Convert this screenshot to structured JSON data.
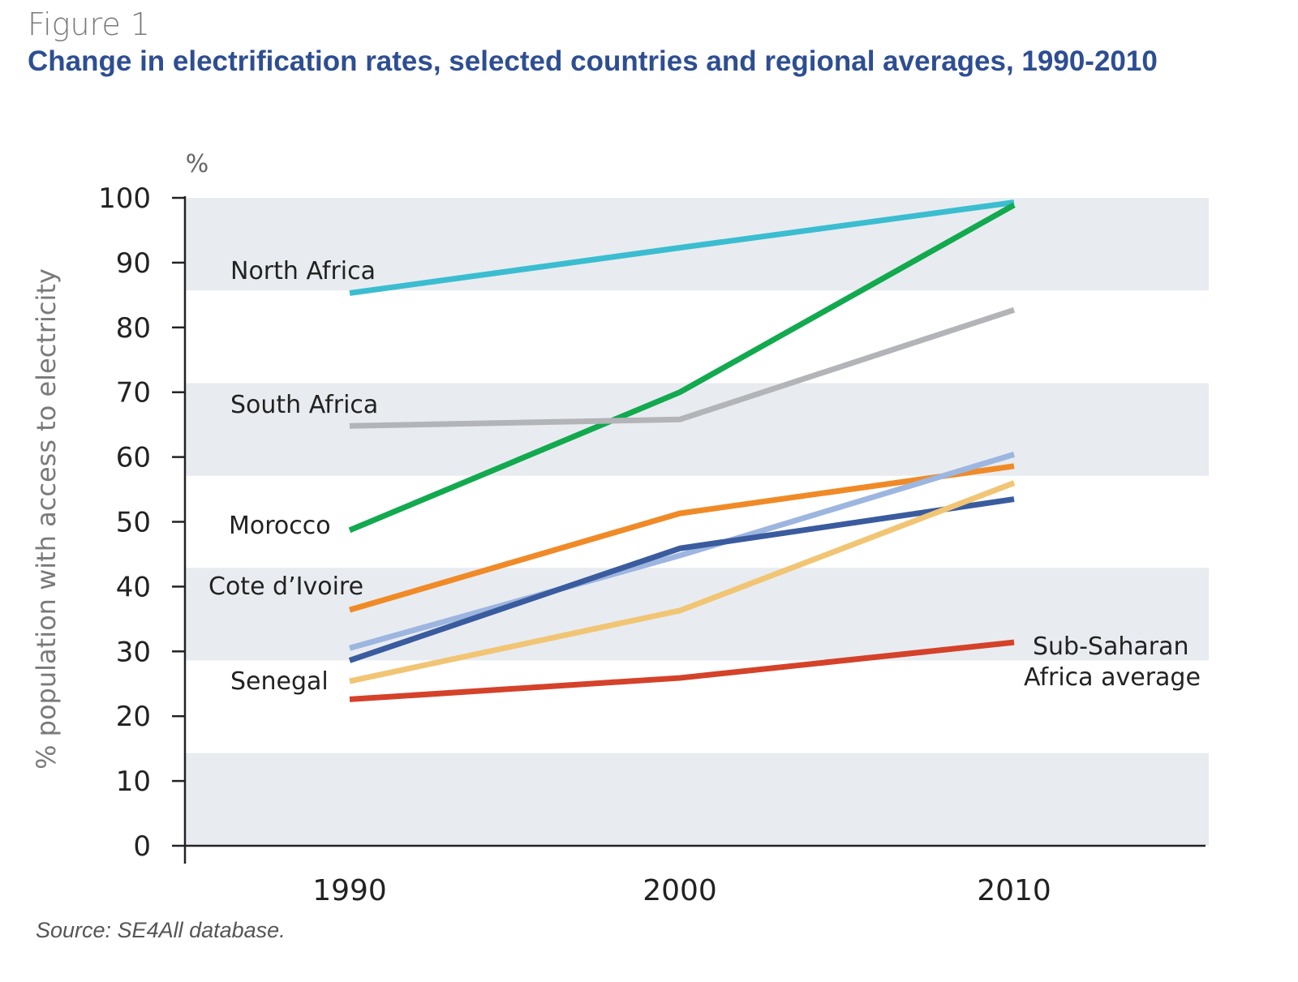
{
  "figure": {
    "label": "Figure 1",
    "title": "Change in electrification rates, selected countries and regional averages, 1990-2010",
    "source": "Source: SE4All database."
  },
  "chart_data": {
    "type": "line",
    "title": "Change in electrification rates, selected countries and regional averages, 1990-2010",
    "xlabel": "",
    "ylabel": "% population with access to electricity",
    "y_unit": "%",
    "x": [
      "1990",
      "2000",
      "2010"
    ],
    "ylim": [
      0,
      100
    ],
    "yticks": [
      0,
      10,
      20,
      30,
      40,
      50,
      60,
      70,
      80,
      90,
      100
    ],
    "series": [
      {
        "name": "North Africa",
        "values": [
          85.3,
          92.3,
          99.3
        ],
        "color": "#3bbdd0"
      },
      {
        "name": "Morocco",
        "values": [
          48.7,
          70.0,
          98.9
        ],
        "color": "#12a94f"
      },
      {
        "name": "South Africa",
        "values": [
          64.8,
          65.8,
          82.7
        ],
        "color": "#b3b4b8"
      },
      {
        "name": "Cote d’Ivoire",
        "values": [
          36.4,
          51.3,
          58.6
        ],
        "color": "#f08a27"
      },
      {
        "name": "",
        "values": [
          30.5,
          44.8,
          60.4
        ],
        "color": "#9db6e0"
      },
      {
        "name": "",
        "values": [
          28.6,
          45.9,
          53.5
        ],
        "color": "#3a5b9e"
      },
      {
        "name": "Senegal",
        "values": [
          25.4,
          36.3,
          56.0
        ],
        "color": "#f1c574"
      },
      {
        "name": "Sub-Saharan Africa average",
        "values": [
          22.6,
          25.9,
          31.4
        ],
        "color": "#d4422a"
      }
    ],
    "series_labels": [
      {
        "text": "North Africa",
        "series": "North Africa"
      },
      {
        "text": "South Africa",
        "series": "South Africa"
      },
      {
        "text": "Morocco",
        "series": "Morocco"
      },
      {
        "text": "Cote d’Ivoire",
        "series": "Cote d’Ivoire"
      },
      {
        "text": "Senegal",
        "series": "Senegal"
      },
      {
        "text": "Sub-Saharan",
        "series": "Sub-Saharan Africa average"
      },
      {
        "text": "Africa average",
        "series": "Sub-Saharan Africa average"
      }
    ],
    "shaded_bands": [
      [
        0,
        14.3
      ],
      [
        28.6,
        42.9
      ],
      [
        57.1,
        71.4
      ],
      [
        85.7,
        100
      ]
    ],
    "band_color": "#e8ecf0",
    "grid": false,
    "legend": "none"
  }
}
